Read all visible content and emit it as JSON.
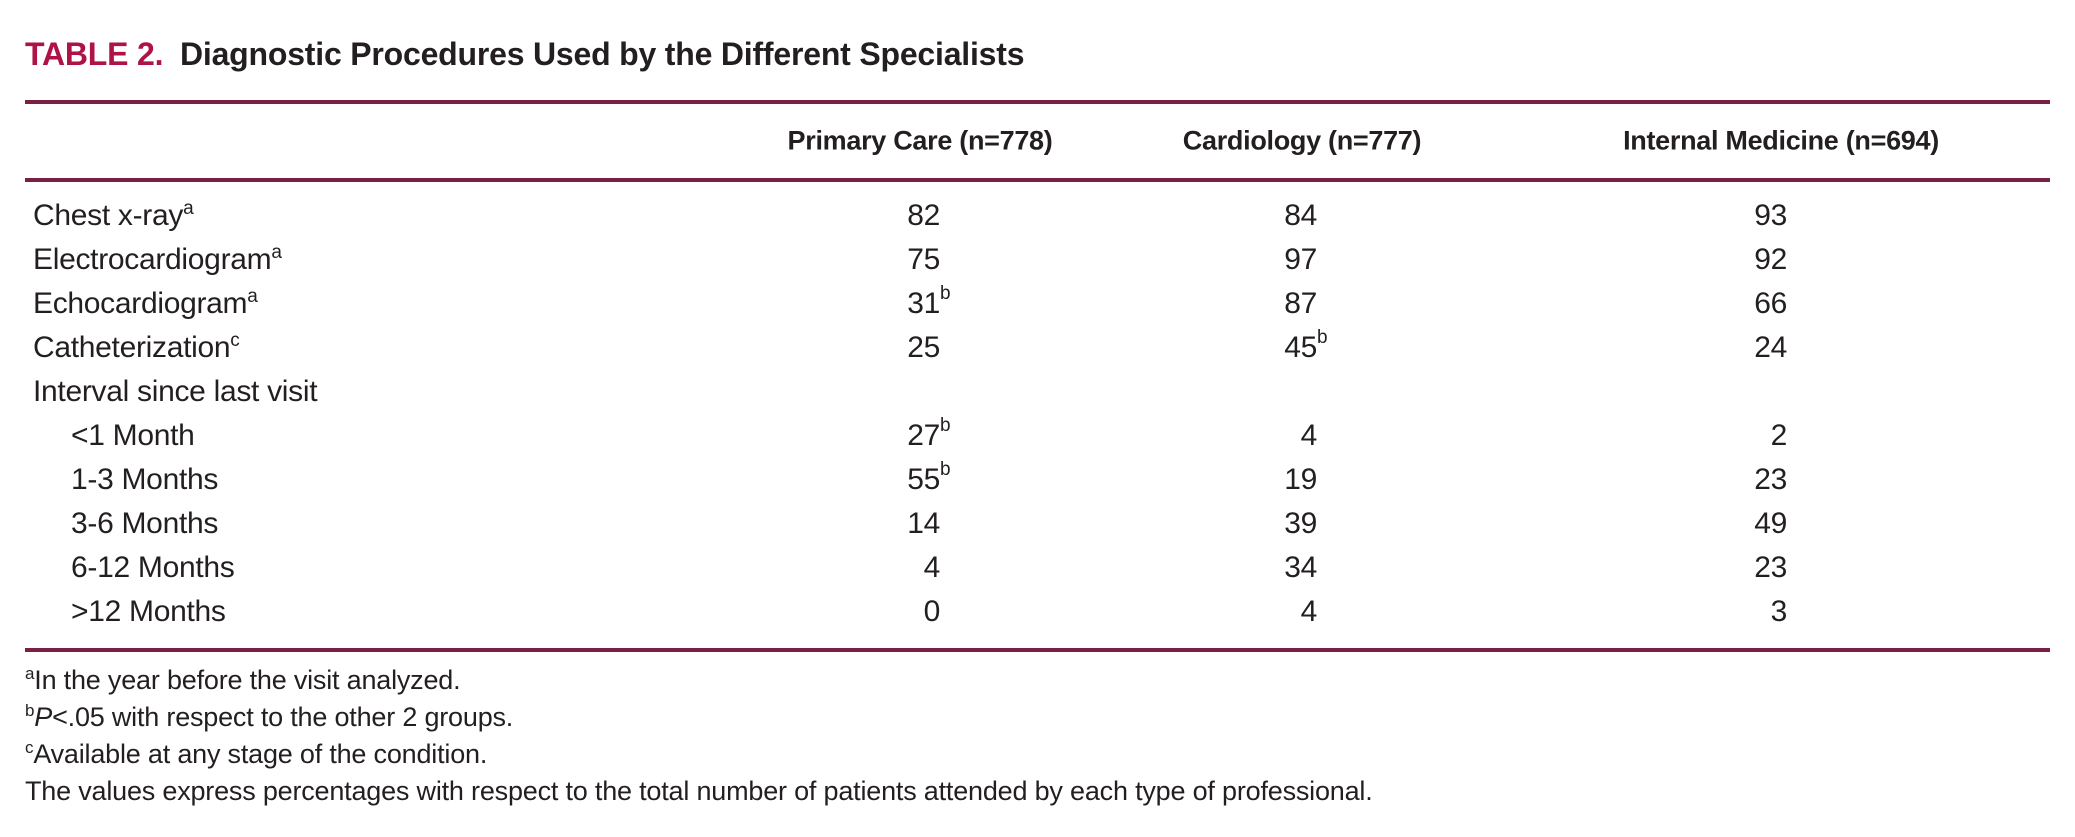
{
  "title": {
    "label": "TABLE 2.",
    "text": "Diagnostic Procedures Used by the Different Specialists"
  },
  "colors": {
    "accent_red": "#ae1246",
    "rule_maroon": "#7a2045",
    "text": "#231f20"
  },
  "table": {
    "columns": [
      "Primary Care (n=778)",
      "Cardiology (n=777)",
      "Internal Medicine (n=694)"
    ],
    "rows": [
      {
        "label": "Chest x-ray",
        "label_sup": "a",
        "values": [
          {
            "v": "82"
          },
          {
            "v": "84"
          },
          {
            "v": "93"
          }
        ]
      },
      {
        "label": "Electrocardiogram",
        "label_sup": "a",
        "values": [
          {
            "v": "75"
          },
          {
            "v": "97"
          },
          {
            "v": "92"
          }
        ]
      },
      {
        "label": "Echocardiogram",
        "label_sup": "a",
        "values": [
          {
            "v": "31",
            "sup": "b"
          },
          {
            "v": "87"
          },
          {
            "v": "66"
          }
        ]
      },
      {
        "label": "Catheterization",
        "label_sup": "c",
        "values": [
          {
            "v": "25"
          },
          {
            "v": "45",
            "sup": "b"
          },
          {
            "v": "24"
          }
        ]
      },
      {
        "label": "Interval since last visit",
        "values": [
          null,
          null,
          null
        ]
      },
      {
        "label": "<1 Month",
        "values": [
          {
            "v": "27",
            "sup": "b"
          },
          {
            "v": "4"
          },
          {
            "v": "2"
          }
        ]
      },
      {
        "label": "1-3 Months",
        "values": [
          {
            "v": "55",
            "sup": "b"
          },
          {
            "v": "19"
          },
          {
            "v": "23"
          }
        ]
      },
      {
        "label": "3-6 Months",
        "values": [
          {
            "v": "14"
          },
          {
            "v": "39"
          },
          {
            "v": "49"
          }
        ]
      },
      {
        "label": "6-12 Months",
        "values": [
          {
            "v": "4"
          },
          {
            "v": "34"
          },
          {
            "v": "23"
          }
        ]
      },
      {
        "label": ">12 Months",
        "values": [
          {
            "v": "0"
          },
          {
            "v": "4"
          },
          {
            "v": "3"
          }
        ]
      }
    ]
  },
  "footnotes": [
    {
      "sup": "a",
      "italic_prefix": "",
      "text": "In the year before the visit analyzed."
    },
    {
      "sup": "b",
      "italic_prefix": "P",
      "text": "<.05 with respect to the other 2 groups."
    },
    {
      "sup": "c",
      "italic_prefix": "",
      "text": "Available at any stage of the condition."
    },
    {
      "sup": "",
      "italic_prefix": "",
      "text": "The values express percentages with respect to the total number of patients attended by each type of professional."
    }
  ]
}
